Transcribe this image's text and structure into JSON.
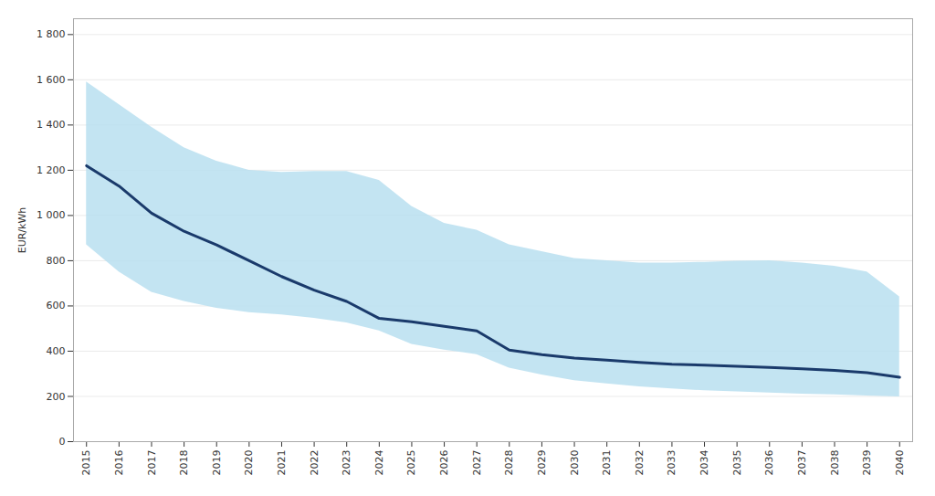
{
  "chart_data": {
    "type": "line",
    "ylabel": "EUR/kWh",
    "x": [
      2015,
      2016,
      2017,
      2018,
      2019,
      2020,
      2021,
      2022,
      2023,
      2024,
      2025,
      2026,
      2027,
      2028,
      2029,
      2030,
      2031,
      2032,
      2033,
      2034,
      2035,
      2036,
      2037,
      2038,
      2039,
      2040
    ],
    "series": [
      {
        "type": "area",
        "color": "#b8dff0",
        "upper": [
          1590,
          1490,
          1390,
          1300,
          1240,
          1200,
          1190,
          1195,
          1195,
          1155,
          1040,
          965,
          935,
          870,
          840,
          810,
          800,
          790,
          790,
          793,
          798,
          800,
          790,
          775,
          750,
          640
        ],
        "lower": [
          870,
          750,
          660,
          620,
          590,
          570,
          560,
          545,
          525,
          490,
          430,
          405,
          385,
          325,
          295,
          270,
          255,
          242,
          233,
          225,
          220,
          215,
          210,
          207,
          202,
          198
        ]
      },
      {
        "type": "line",
        "color": "#1a3a6b",
        "values": [
          1220,
          1130,
          1010,
          930,
          870,
          800,
          730,
          670,
          620,
          545,
          530,
          510,
          490,
          405,
          385,
          370,
          360,
          350,
          342,
          338,
          333,
          328,
          322,
          315,
          305,
          285
        ]
      }
    ],
    "xlim": [
      2014.6,
      2040.4
    ],
    "xticks": [
      2015,
      2016,
      2017,
      2018,
      2019,
      2020,
      2021,
      2022,
      2023,
      2024,
      2025,
      2026,
      2027,
      2028,
      2029,
      2030,
      2031,
      2032,
      2033,
      2034,
      2035,
      2036,
      2037,
      2038,
      2039,
      2040
    ],
    "ylim": [
      0,
      1870
    ],
    "yticks": [
      0,
      200,
      400,
      600,
      800,
      {
        "value": 1000,
        "label": "1 000"
      },
      {
        "value": 1200,
        "label": "1 200"
      },
      {
        "value": 1400,
        "label": "1 400"
      },
      {
        "value": 1600,
        "label": "1 600"
      },
      {
        "value": 1800,
        "label": "1 800"
      }
    ],
    "grid": true
  }
}
